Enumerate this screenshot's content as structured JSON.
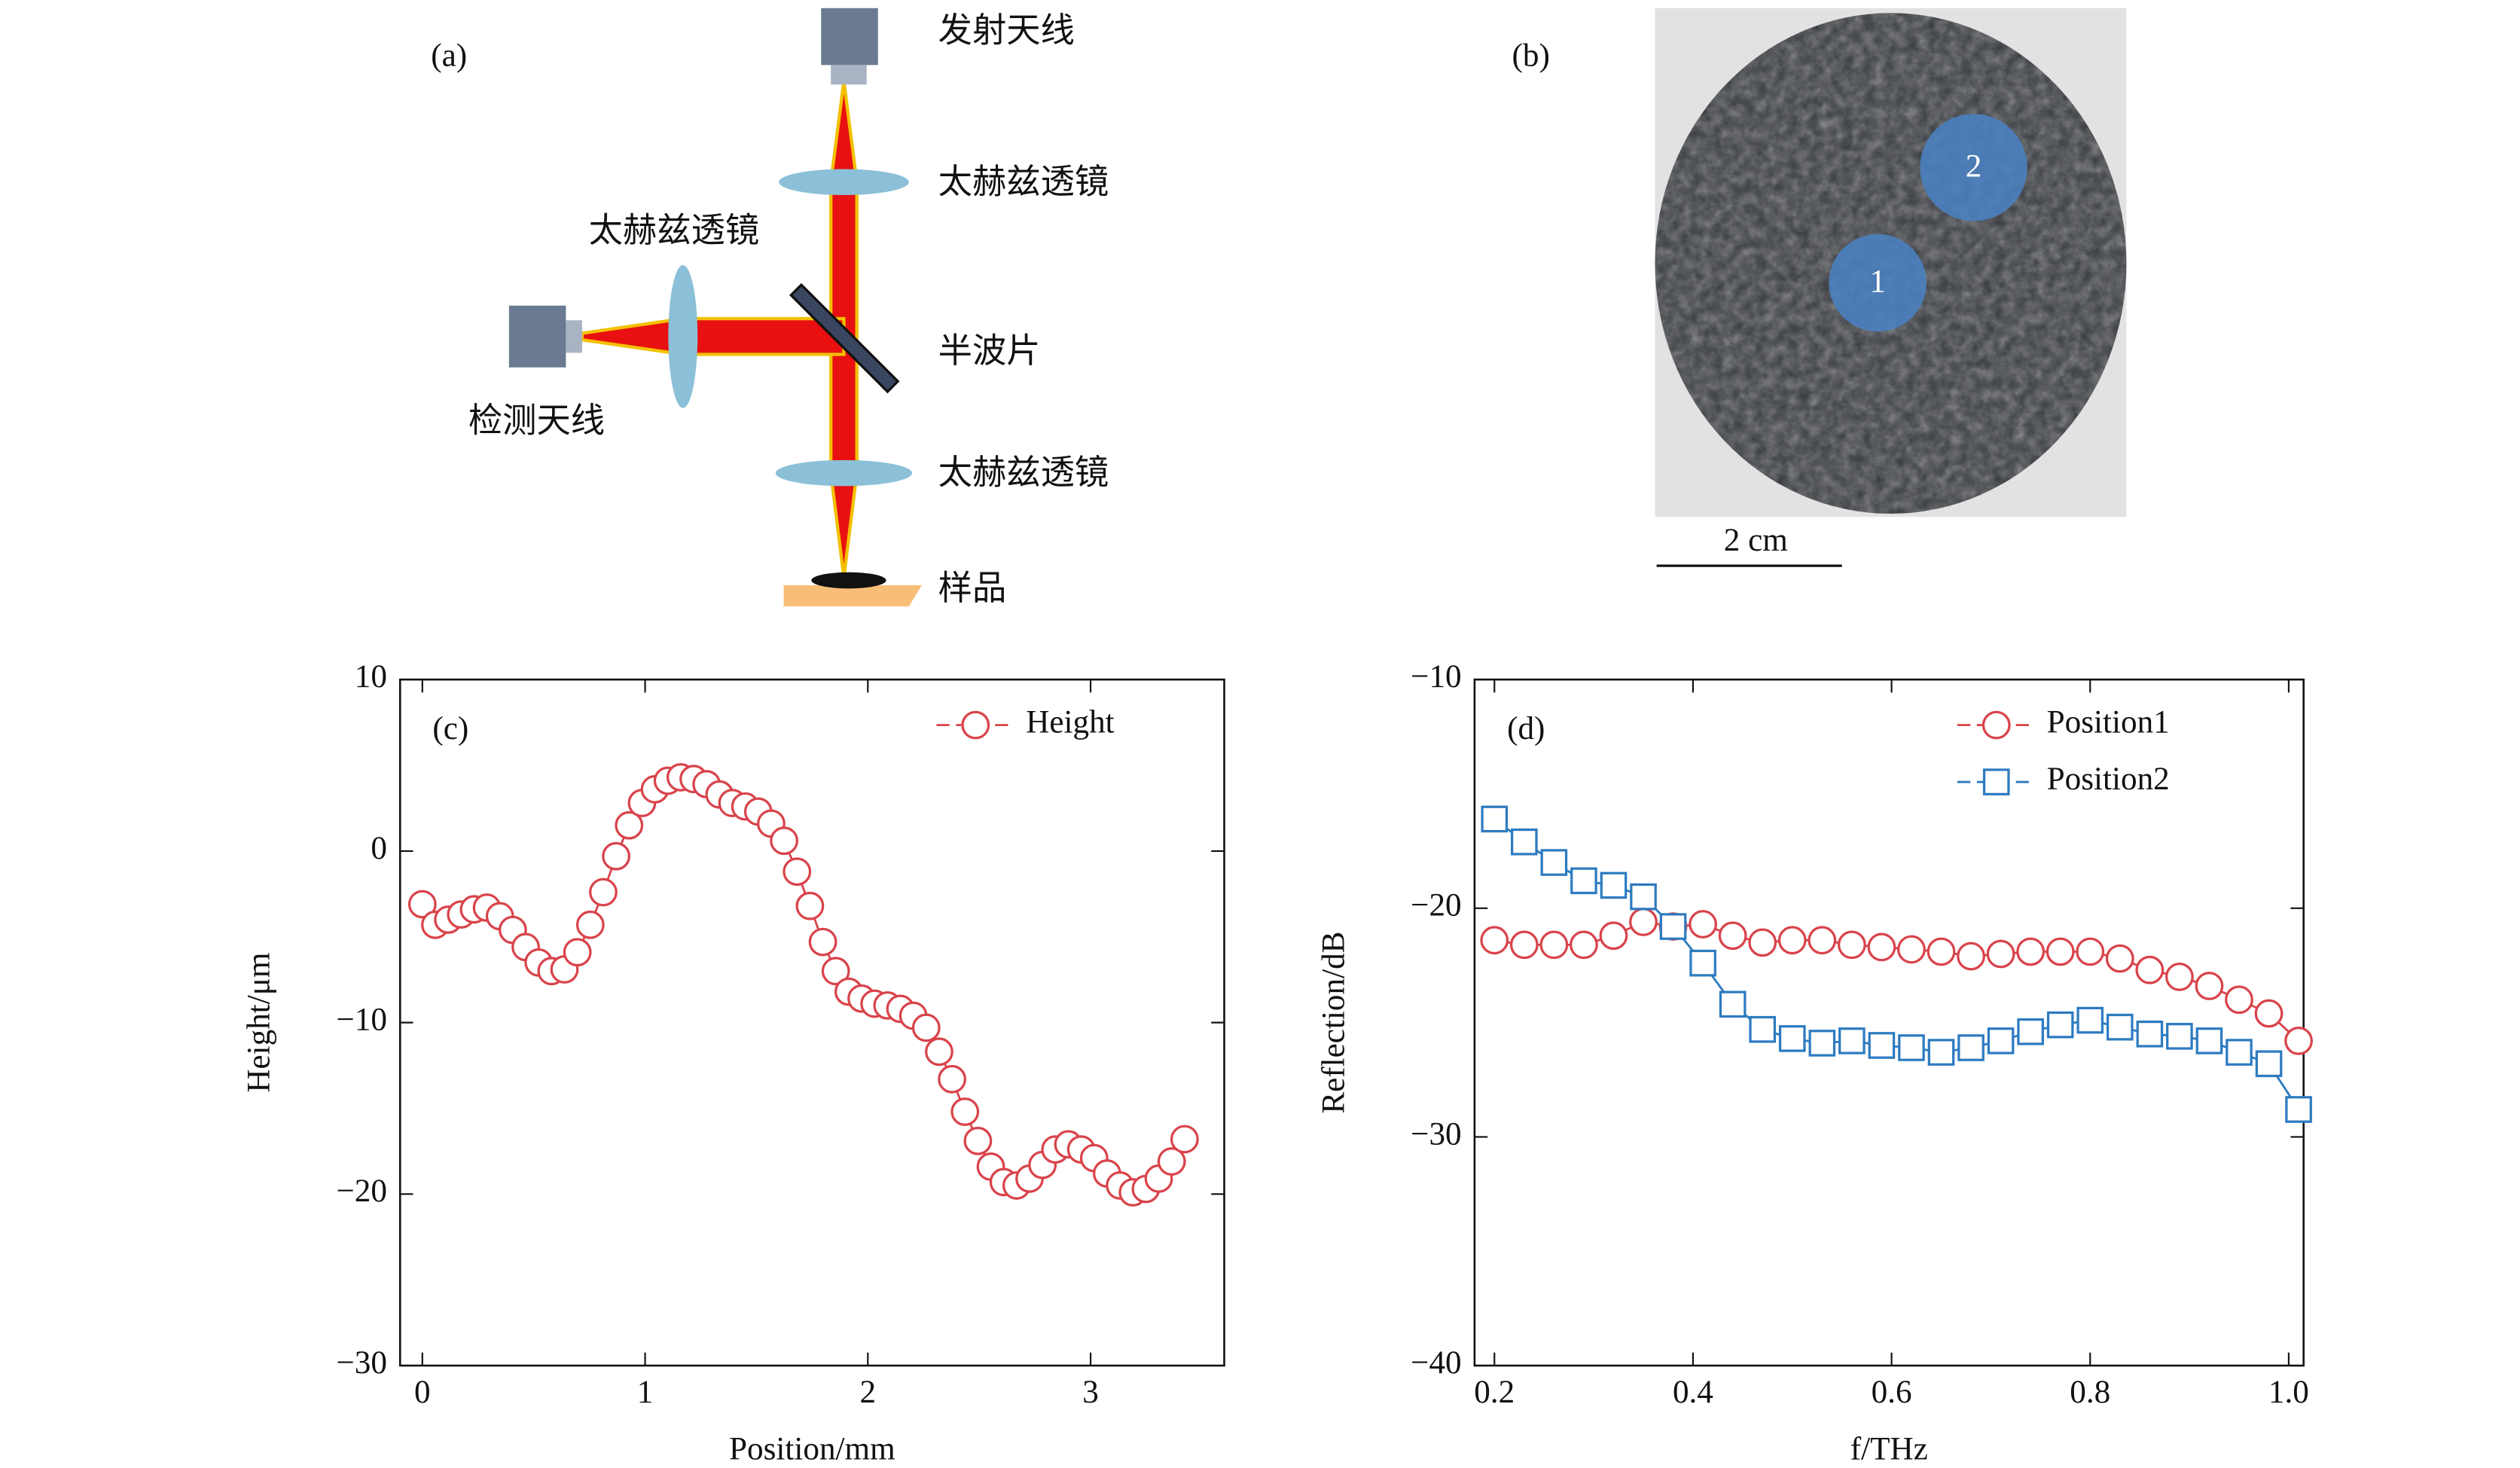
{
  "diagram": {
    "panel_label": "(a)",
    "emitter": "发射天线",
    "lens_top": "太赫兹透镜",
    "lens_left": "太赫兹透镜",
    "half_wave_plate": "半波片",
    "detector": "检测天线",
    "lens_bottom": "太赫兹透镜",
    "sample": "样品"
  },
  "photo": {
    "panel_label": "(b)",
    "spots": [
      "1",
      "2"
    ],
    "scale_bar": "2 cm"
  },
  "chart_data": [
    {
      "type": "line",
      "panel_label": "(c)",
      "x_label": "Position/mm",
      "y_label": "Height/μm",
      "xlim": [
        -0.1,
        3.6
      ],
      "ylim": [
        -30,
        10
      ],
      "xticks": [
        0,
        1,
        2,
        3
      ],
      "yticks": [
        {
          "value": -30,
          "label": "−30"
        },
        {
          "value": -20,
          "label": "−20"
        },
        {
          "value": -10,
          "label": "−10"
        },
        0,
        10
      ],
      "legend": "upper right",
      "series": [
        {
          "name": "Height",
          "color": "#d9434a",
          "marker": "circle",
          "x": [
            0,
            0.058,
            0.116,
            0.174,
            0.232,
            0.29,
            0.348,
            0.406,
            0.464,
            0.522,
            0.58,
            0.638,
            0.696,
            0.754,
            0.812,
            0.87,
            0.928,
            0.986,
            1.044,
            1.102,
            1.16,
            1.218,
            1.276,
            1.334,
            1.392,
            1.45,
            1.508,
            1.566,
            1.624,
            1.682,
            1.74,
            1.798,
            1.856,
            1.914,
            1.972,
            2.03,
            2.088,
            2.146,
            2.204,
            2.262,
            2.32,
            2.378,
            2.436,
            2.494,
            2.552,
            2.61,
            2.668,
            2.726,
            2.784,
            2.842,
            2.9,
            2.958,
            3.016,
            3.074,
            3.132,
            3.19,
            3.248,
            3.306,
            3.364,
            3.422
          ],
          "values": [
            -3.1,
            -4.3,
            -4.0,
            -3.7,
            -3.4,
            -3.3,
            -3.8,
            -4.6,
            -5.6,
            -6.5,
            -7.0,
            -6.9,
            -5.9,
            -4.3,
            -2.4,
            -0.3,
            1.5,
            2.8,
            3.6,
            4.1,
            4.3,
            4.2,
            3.9,
            3.3,
            2.8,
            2.6,
            2.3,
            1.6,
            0.6,
            -1.2,
            -3.2,
            -5.3,
            -7.0,
            -8.2,
            -8.6,
            -8.9,
            -9.0,
            -9.2,
            -9.6,
            -10.3,
            -11.7,
            -13.3,
            -15.2,
            -16.9,
            -18.4,
            -19.3,
            -19.5,
            -19.1,
            -18.3,
            -17.4,
            -17.1,
            -17.4,
            -17.9,
            -18.8,
            -19.5,
            -19.9,
            -19.7,
            -19.1,
            -18.1,
            -16.8
          ]
        }
      ]
    },
    {
      "type": "line",
      "panel_label": "(d)",
      "x_label": "f/THz",
      "y_label": "Reflection/dB",
      "xlim": [
        0.18,
        1.015
      ],
      "ylim": [
        -40,
        -10
      ],
      "xticks": [
        0.2,
        0.4,
        0.6,
        0.8,
        {
          "value": 1,
          "label": "1.0"
        }
      ],
      "yticks": [
        {
          "value": -40,
          "label": "−40"
        },
        {
          "value": -30,
          "label": "−30"
        },
        {
          "value": -20,
          "label": "−20"
        },
        {
          "value": -10,
          "label": "−10"
        }
      ],
      "legend": "upper right",
      "series": [
        {
          "name": "Position1",
          "color": "#d9434a",
          "marker": "circle",
          "x": [
            0.2,
            0.23,
            0.26,
            0.29,
            0.32,
            0.35,
            0.38,
            0.41,
            0.44,
            0.47,
            0.5,
            0.53,
            0.56,
            0.59,
            0.62,
            0.65,
            0.68,
            0.71,
            0.74,
            0.77,
            0.8,
            0.83,
            0.86,
            0.89,
            0.92,
            0.95,
            0.98,
            1.01
          ],
          "values": [
            -21.4,
            -21.6,
            -21.6,
            -21.6,
            -21.2,
            -20.6,
            -20.8,
            -20.7,
            -21.2,
            -21.5,
            -21.4,
            -21.4,
            -21.6,
            -21.7,
            -21.8,
            -21.9,
            -22.1,
            -22.0,
            -21.9,
            -21.9,
            -21.9,
            -22.2,
            -22.7,
            -23.0,
            -23.4,
            -24.0,
            -24.6,
            -25.8
          ]
        },
        {
          "name": "Position2",
          "color": "#2d7bc0",
          "marker": "square",
          "x": [
            0.2,
            0.23,
            0.26,
            0.29,
            0.32,
            0.35,
            0.38,
            0.41,
            0.44,
            0.47,
            0.5,
            0.53,
            0.56,
            0.59,
            0.62,
            0.65,
            0.68,
            0.71,
            0.74,
            0.77,
            0.8,
            0.83,
            0.86,
            0.89,
            0.92,
            0.95,
            0.98,
            1.01
          ],
          "values": [
            -16.1,
            -17.1,
            -18.0,
            -18.8,
            -19.0,
            -19.5,
            -20.8,
            -22.4,
            -24.2,
            -25.3,
            -25.7,
            -25.9,
            -25.8,
            -26.0,
            -26.1,
            -26.3,
            -26.1,
            -25.8,
            -25.4,
            -25.1,
            -24.9,
            -25.2,
            -25.5,
            -25.6,
            -25.8,
            -26.3,
            -26.8,
            -28.8
          ]
        }
      ]
    }
  ]
}
